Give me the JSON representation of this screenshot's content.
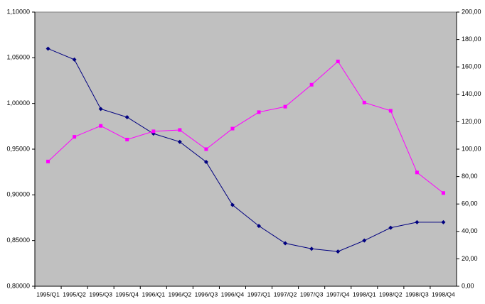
{
  "chart_data": {
    "type": "line",
    "categories": [
      "1995/Q1",
      "1995/Q2",
      "1995/Q3",
      "1995/Q4",
      "1996/Q1",
      "1996/Q2",
      "1996/Q3",
      "1996/Q4",
      "1997/Q1",
      "1997/Q2",
      "1997/Q3",
      "1997/Q4",
      "1998/Q1",
      "1998/Q2",
      "1998/Q3",
      "1998/Q4"
    ],
    "series": [
      {
        "color": "#000080",
        "marker": "diamond",
        "axis": "y",
        "values": [
          1.06,
          1.048,
          0.994,
          0.985,
          0.967,
          0.958,
          0.936,
          0.889,
          0.866,
          0.847,
          0.841,
          0.838,
          0.85,
          0.864,
          0.87,
          0.87
        ]
      },
      {
        "color": "#ff00ff",
        "marker": "square",
        "axis": "y2",
        "values": [
          91,
          109,
          117,
          107,
          113,
          114,
          100,
          115,
          127,
          131,
          147,
          164,
          134,
          128,
          83,
          68
        ]
      }
    ],
    "ylim": [
      0.8,
      1.1
    ],
    "yticks": [
      {
        "value": 0.8,
        "label": "0,80000"
      },
      {
        "value": 0.85,
        "label": "0,85000"
      },
      {
        "value": 0.9,
        "label": "0,90000"
      },
      {
        "value": 0.95,
        "label": "0,95000"
      },
      {
        "value": 1.0,
        "label": "1,00000"
      },
      {
        "value": 1.05,
        "label": "1,05000"
      },
      {
        "value": 1.1,
        "label": "1,10000"
      }
    ],
    "y2lim": [
      0,
      200
    ],
    "y2ticks": [
      {
        "value": 0,
        "label": "0,00"
      },
      {
        "value": 20,
        "label": "20,00"
      },
      {
        "value": 40,
        "label": "40,00"
      },
      {
        "value": 60,
        "label": "60,00"
      },
      {
        "value": 80,
        "label": "80,00"
      },
      {
        "value": 100,
        "label": "100,00"
      },
      {
        "value": 120,
        "label": "120,00"
      },
      {
        "value": 140,
        "label": "140,00"
      },
      {
        "value": 160,
        "label": "160,00"
      },
      {
        "value": 180,
        "label": "180,00"
      },
      {
        "value": 200,
        "label": "200,00"
      }
    ],
    "plot_background": "#c0c0c0",
    "grid": false
  }
}
